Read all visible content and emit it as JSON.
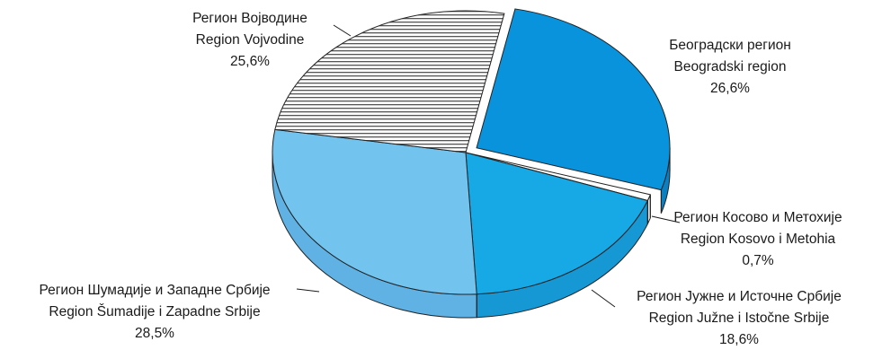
{
  "chart_data": {
    "type": "pie",
    "title": "",
    "slices": [
      {
        "label_cyrillic": "Београдски регион",
        "label_latin": "Beogradski region",
        "value": 26.6,
        "value_label": "26,6%",
        "color": "#0a93dd",
        "side_color": "#0a7fc2",
        "pattern": "solid"
      },
      {
        "label_cyrillic": "Регион Косово и Метохије",
        "label_latin": "Region Kosovo i Metohia",
        "value": 0.7,
        "value_label": "0,7%",
        "color": "#ffffff",
        "side_color": "#e9e9e9",
        "pattern": "solid"
      },
      {
        "label_cyrillic": "Регион Јужне и Источне Србије",
        "label_latin": "Region Južne i Istočne Srbije",
        "value": 18.6,
        "value_label": "18,6%",
        "color": "#16a9e6",
        "side_color": "#1598d4",
        "pattern": "solid"
      },
      {
        "label_cyrillic": "Регион Шумадије и Западне Србије",
        "label_latin": "Region Šumadije i Zapadne Srbije",
        "value": 28.5,
        "value_label": "28,5%",
        "color": "#73c3ef",
        "side_color": "#5fb2e3",
        "pattern": "solid"
      },
      {
        "label_cyrillic": "Регион Војводине",
        "label_latin": "Region Vojvodine",
        "value": 25.6,
        "value_label": "25,6%",
        "color": "#ffffff",
        "side_color": "#ffffff",
        "pattern": "horizontal-stripes"
      }
    ],
    "exploded_slice": "Београдски регион",
    "legend": "none",
    "label_style": "outside-with-leader-lines",
    "stripe_color": "#555555",
    "edge_color": "#222222"
  }
}
